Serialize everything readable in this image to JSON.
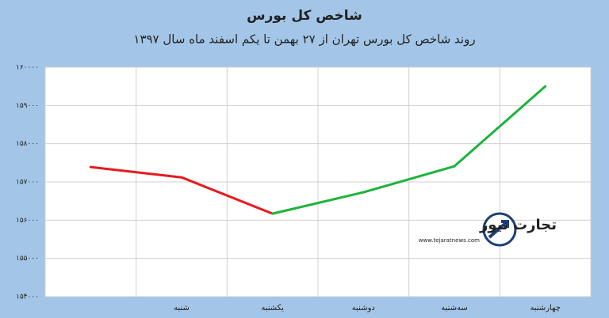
{
  "chart_data": {
    "type": "line",
    "title": "شاخص کل بورس",
    "subtitle": "روند شاخص کل بورس تهران از ۲۷ بهمن تا یکم اسفند ماه سال ۱۳۹۷",
    "categories": [
      null,
      "شنبه",
      "یکشنبه",
      "دوشنبه",
      "سه‌شنبه",
      "چهارشنبه"
    ],
    "values": [
      157390,
      157120,
      156170,
      156730,
      157410,
      159500
    ],
    "down_color": "#e8191d",
    "up_color": "#1db33a",
    "ylim": [
      154000,
      160000
    ],
    "yticks": [
      {
        "value": 154000,
        "label": "۱۵۴۰۰۰"
      },
      {
        "value": 155000,
        "label": "۱۵۵۰۰۰"
      },
      {
        "value": 156000,
        "label": "۱۵۶۰۰۰"
      },
      {
        "value": 157000,
        "label": "۱۵۷۰۰۰"
      },
      {
        "value": 158000,
        "label": "۱۵۸۰۰۰"
      },
      {
        "value": 159000,
        "label": "۱۵۹۰۰۰"
      },
      {
        "value": 160000,
        "label": "۱۶۰۰۰۰"
      }
    ],
    "grid": true,
    "watermark": {
      "name": "تجارت نیوز",
      "url": "www.tejaratnews.com"
    }
  }
}
